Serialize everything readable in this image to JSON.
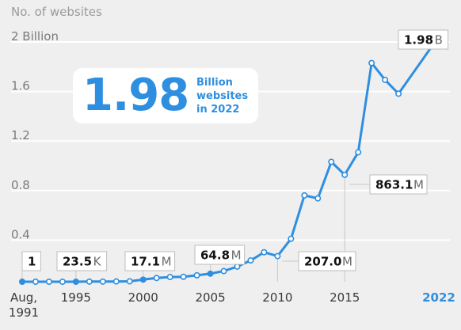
{
  "chart_data": {
    "type": "line",
    "ylabel": "No. of websites",
    "ylim": [
      0,
      2
    ],
    "grid": true,
    "y_ticks": [
      {
        "value": 0.4,
        "label": "0.4"
      },
      {
        "value": 0.8,
        "label": "0.8"
      },
      {
        "value": 1.2,
        "label": "1.2"
      },
      {
        "value": 1.6,
        "label": "1.6"
      },
      {
        "value": 2.0,
        "label": "2 Billion"
      }
    ],
    "x_ticks": [
      {
        "year": 1991,
        "label_line1": "Aug,",
        "label_line2": "1991"
      },
      {
        "year": 1995,
        "label": "1995"
      },
      {
        "year": 2000,
        "label": "2000"
      },
      {
        "year": 2005,
        "label": "2005"
      },
      {
        "year": 2010,
        "label": "2010"
      },
      {
        "year": 2015,
        "label": "2015"
      },
      {
        "year": 2022,
        "label": "2022",
        "highlight": true
      }
    ],
    "series": [
      {
        "x": [
          1991,
          1992,
          1993,
          1994,
          1995,
          1996,
          1997,
          1998,
          1999,
          2000,
          2001,
          2002,
          2003,
          2004,
          2005,
          2006,
          2007,
          2008,
          2009,
          2010,
          2011,
          2012,
          2013,
          2014,
          2015,
          2016,
          2017,
          2018,
          2019,
          2022
        ],
        "values": [
          0.0,
          0.0,
          0.0,
          0.0,
          0.0,
          0.001,
          0.001,
          0.002,
          0.003,
          0.017,
          0.03,
          0.038,
          0.04,
          0.052,
          0.065,
          0.086,
          0.122,
          0.172,
          0.238,
          0.207,
          0.347,
          0.697,
          0.673,
          0.968,
          0.863,
          1.045,
          1.766,
          1.63,
          1.518,
          1.98
        ],
        "color": "#2e8fe0"
      }
    ],
    "annotations": [
      {
        "year": 1991,
        "value": 0.0,
        "number": "1",
        "unit": ""
      },
      {
        "year": 1995,
        "value": 0.0,
        "number": "23.5",
        "unit": "K"
      },
      {
        "year": 2000,
        "value": 0.017,
        "number": "17.1",
        "unit": "M"
      },
      {
        "year": 2005,
        "value": 0.065,
        "number": "64.8",
        "unit": "M"
      },
      {
        "year": 2010,
        "value": 0.207,
        "number": "207.0",
        "unit": "M"
      },
      {
        "year": 2015,
        "value": 0.863,
        "number": "863.1",
        "unit": "M"
      },
      {
        "year": 2022,
        "value": 1.98,
        "number": "1.98",
        "unit": "B"
      }
    ]
  },
  "callout": {
    "big": "1.98",
    "line1": "Billion",
    "line2": "websites",
    "line3": "in 2022"
  }
}
